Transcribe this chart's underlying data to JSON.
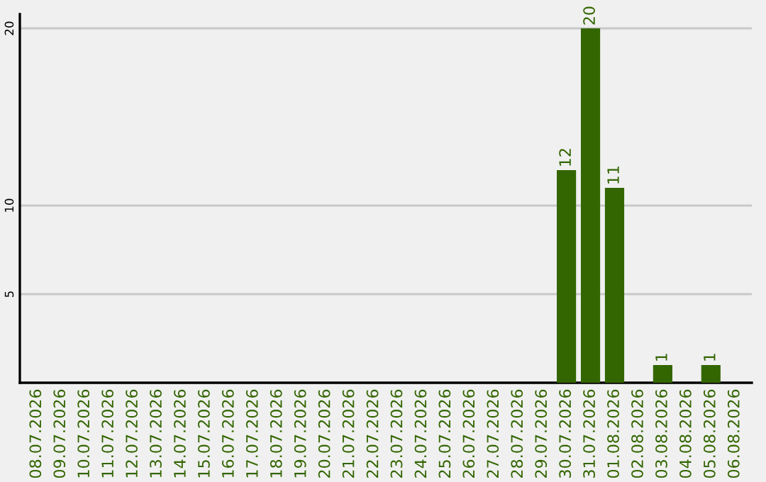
{
  "chart_data": {
    "type": "bar",
    "categories": [
      "08.07.2026",
      "09.07.2026",
      "10.07.2026",
      "11.07.2026",
      "12.07.2026",
      "13.07.2026",
      "14.07.2026",
      "15.07.2026",
      "16.07.2026",
      "17.07.2026",
      "18.07.2026",
      "19.07.2026",
      "20.07.2026",
      "21.07.2026",
      "22.07.2026",
      "23.07.2026",
      "24.07.2026",
      "25.07.2026",
      "26.07.2026",
      "27.07.2026",
      "28.07.2026",
      "29.07.2026",
      "30.07.2026",
      "31.07.2026",
      "01.08.2026",
      "02.08.2026",
      "03.08.2026",
      "04.08.2026",
      "05.08.2026",
      "06.08.2026"
    ],
    "values": [
      0,
      0,
      0,
      0,
      0,
      0,
      0,
      0,
      0,
      0,
      0,
      0,
      0,
      0,
      0,
      0,
      0,
      0,
      0,
      0,
      0,
      0,
      12,
      20,
      11,
      0,
      1,
      0,
      1,
      0
    ],
    "value_labels": [
      null,
      null,
      null,
      null,
      null,
      null,
      null,
      null,
      null,
      null,
      null,
      null,
      null,
      null,
      null,
      null,
      null,
      null,
      null,
      null,
      null,
      null,
      "12",
      "20",
      "11",
      null,
      "1",
      null,
      "1",
      null
    ],
    "color": "#336600",
    "ylim": [
      0,
      20.8
    ],
    "yticks": [
      5,
      10,
      20
    ],
    "grid": "y"
  }
}
